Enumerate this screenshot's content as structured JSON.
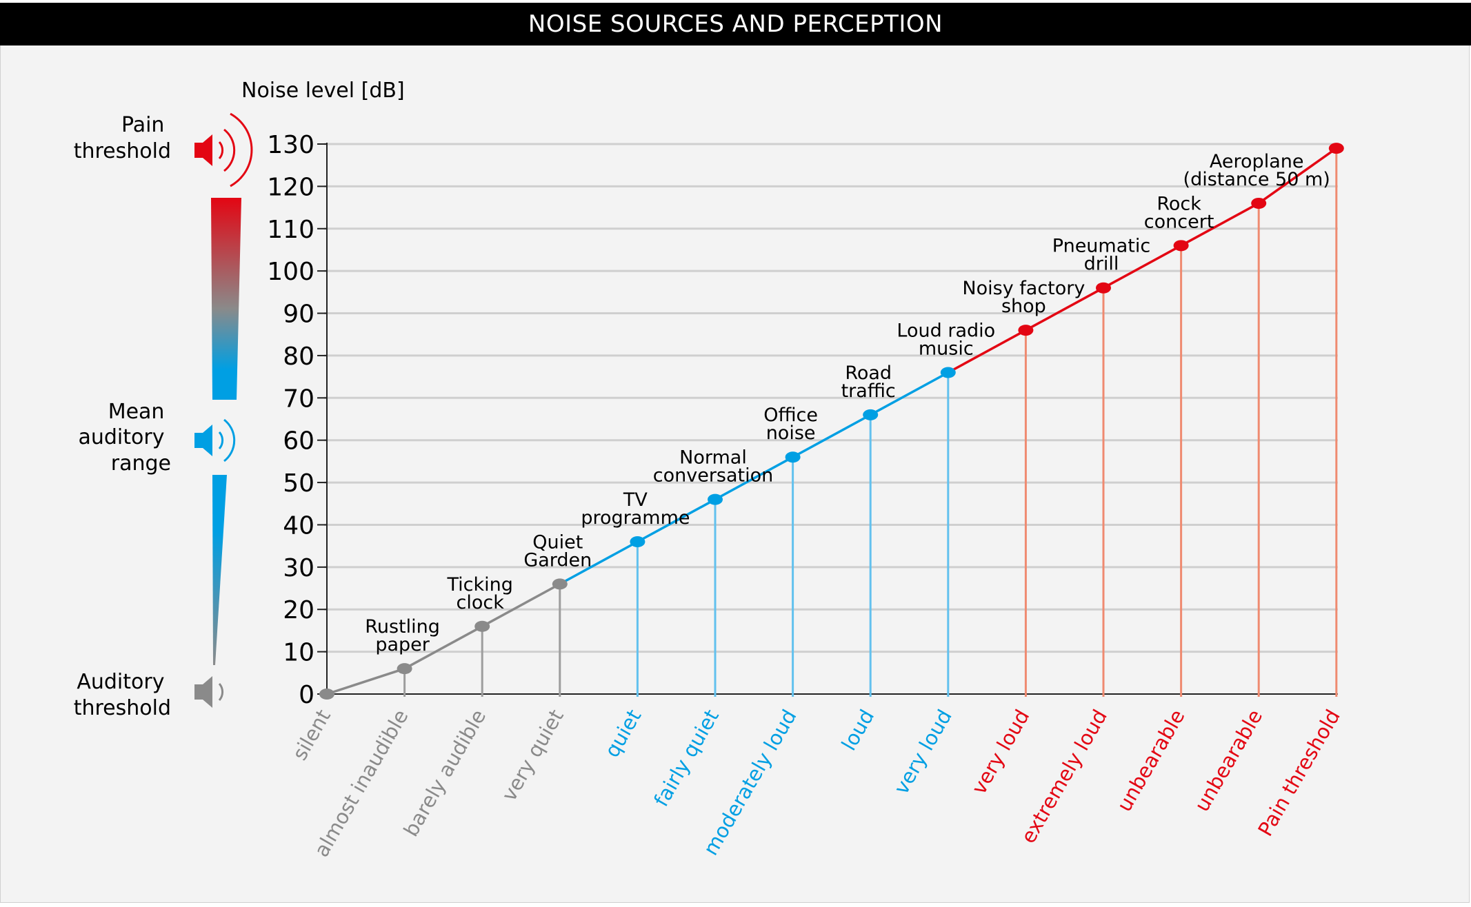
{
  "title": "NOISE SOURCES AND PERCEPTION",
  "y_axis_label": "Noise level [dB]",
  "scale_labels": [
    {
      "lines": [
        "Pain",
        "threshold"
      ],
      "color": "#e30613",
      "icon": "speaker-loud-icon"
    },
    {
      "lines": [
        "Mean",
        "auditory",
        "range"
      ],
      "color": "#009fe3",
      "icon": "speaker-medium-icon"
    },
    {
      "lines": [
        "Auditory",
        "threshold"
      ],
      "color": "#8a8a8a",
      "icon": "speaker-quiet-icon"
    }
  ],
  "colors": {
    "gray": "#8a8a8a",
    "blue": "#009fe3",
    "red": "#e30613",
    "gray_drop": "#9d9d9d",
    "blue_drop": "#62c1ee",
    "red_drop": "#ef8a70",
    "grid": "#cfcfcf"
  },
  "chart_data": {
    "type": "line",
    "title": "NOISE SOURCES AND PERCEPTION",
    "ylabel": "Noise level [dB]",
    "xlabel": "",
    "ylim": [
      0,
      130
    ],
    "yticks": [
      0,
      10,
      20,
      30,
      40,
      50,
      60,
      70,
      80,
      90,
      100,
      110,
      120,
      130
    ],
    "grid": true,
    "points": [
      {
        "value": 0,
        "source": [],
        "perception": "silent",
        "group": "gray"
      },
      {
        "value": 6,
        "source": [
          "Rustling",
          "paper"
        ],
        "perception": "almost inaudible",
        "group": "gray"
      },
      {
        "value": 16,
        "source": [
          "Ticking",
          "clock"
        ],
        "perception": "barely audible",
        "group": "gray"
      },
      {
        "value": 26,
        "source": [
          "Quiet",
          "Garden"
        ],
        "perception": "very quiet",
        "group": "gray"
      },
      {
        "value": 36,
        "source": [
          "TV",
          "programme"
        ],
        "perception": "quiet",
        "group": "blue"
      },
      {
        "value": 46,
        "source": [
          "Normal",
          "conversation"
        ],
        "perception": "fairly quiet",
        "group": "blue"
      },
      {
        "value": 56,
        "source": [
          "Office",
          "noise"
        ],
        "perception": "moderately loud",
        "group": "blue"
      },
      {
        "value": 66,
        "source": [
          "Road",
          "traffic"
        ],
        "perception": "loud",
        "group": "blue"
      },
      {
        "value": 76,
        "source": [
          "Loud radio",
          "music"
        ],
        "perception": "very loud",
        "group": "blue"
      },
      {
        "value": 86,
        "source": [
          "Noisy factory",
          "shop"
        ],
        "perception": "very loud",
        "group": "red"
      },
      {
        "value": 96,
        "source": [
          "Pneumatic",
          "drill"
        ],
        "perception": "extremely loud",
        "group": "red"
      },
      {
        "value": 106,
        "source": [
          "Rock",
          "concert"
        ],
        "perception": "unbearable",
        "group": "red"
      },
      {
        "value": 116,
        "source": [
          "Aeroplane",
          "(distance 50 m)"
        ],
        "perception": "unbearable",
        "group": "red"
      },
      {
        "value": 129,
        "source": [],
        "perception": "Pain threshold",
        "group": "red"
      }
    ]
  }
}
